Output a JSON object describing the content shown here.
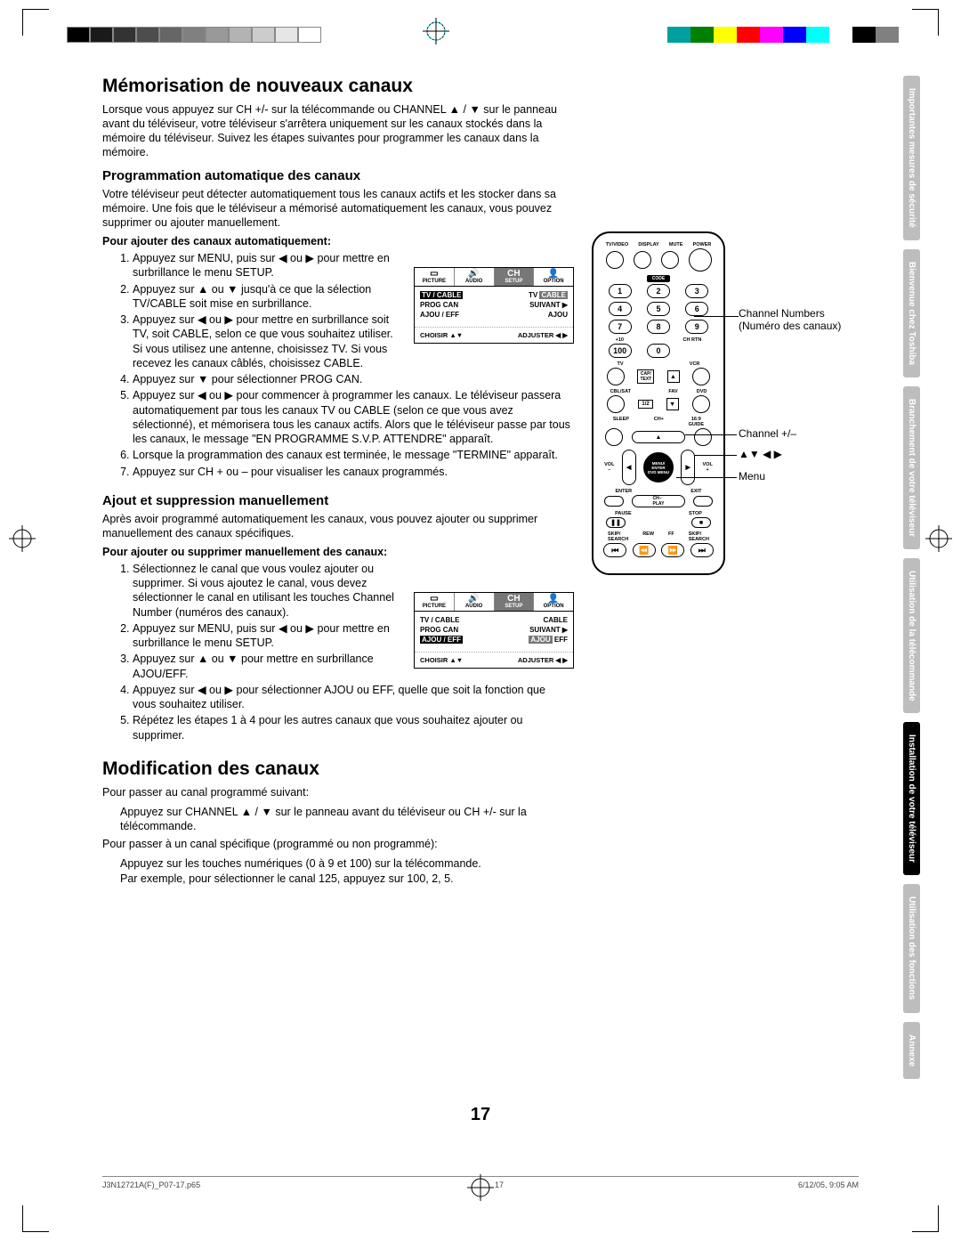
{
  "printer_marks": {
    "grayscale": [
      "#000000",
      "#1a1a1a",
      "#333333",
      "#4d4d4d",
      "#666666",
      "#808080",
      "#999999",
      "#b3b3b3",
      "#cccccc",
      "#e6e6e6",
      "#ffffff"
    ],
    "colorbar": [
      "#00a0a0",
      "#008000",
      "#ffff00",
      "#ff0000",
      "#ff00ff",
      "#0000ff",
      "#00ffff",
      "#ffffff",
      "#000000",
      "#808080"
    ]
  },
  "section1": {
    "title": "Mémorisation de nouveaux canaux",
    "intro": "Lorsque vous appuyez sur CH +/- sur la télécommande ou CHANNEL ▲ / ▼ sur le panneau avant du téléviseur, votre téléviseur s'arrêtera uniquement sur les canaux stockés dans la mémoire du téléviseur. Suivez les étapes suivantes pour programmer les canaux dans la mémoire.",
    "sub1": "Programmation automatique des canaux",
    "sub1_body": "Votre téléviseur peut détecter automatiquement tous les canaux actifs et les stocker dans sa mémoire. Une fois que le téléviseur a mémorisé automatiquement les canaux, vous pouvez supprimer ou ajouter manuellement.",
    "lead1": "Pour ajouter des canaux automatiquement:",
    "steps1": [
      "Appuyez sur MENU, puis sur ◀ ou ▶ pour mettre en surbrillance le menu SETUP.",
      "Appuyez sur ▲ ou ▼ jusqu'à ce que la sélection TV/CABLE soit mise en surbrillance.",
      "Appuyez sur ◀ ou ▶ pour mettre en surbrillance soit TV, soit CABLE, selon ce que vous souhaitez utiliser. Si vous utilisez une antenne, choisissez TV. Si vous recevez les canaux câblés, choisissez CABLE.",
      "Appuyez sur ▼ pour sélectionner PROG CAN.",
      "Appuyez sur ◀ ou ▶ pour commencer à programmer les canaux. Le téléviseur passera automatiquement par tous les canaux TV ou CABLE (selon ce que vous avez sélectionné), et mémorisera tous les canaux actifs. Alors que le téléviseur passe par tous les canaux, le message \"EN PROGRAMME S.V.P. ATTENDRE\" apparaît.",
      "Lorsque la programmation des canaux est terminée, le message \"TERMINE\" apparaît.",
      "Appuyez sur CH + ou – pour visualiser les canaux programmés."
    ],
    "sub2": "Ajout et suppression manuellement",
    "sub2_body": "Après avoir programmé automatiquement les canaux, vous pouvez ajouter ou supprimer manuellement des canaux spécifiques.",
    "lead2": "Pour ajouter ou supprimer manuellement des canaux:",
    "steps2": [
      "Sélectionnez le canal que vous voulez  ajouter ou supprimer. Si vous ajoutez le canal, vous devez sélectionner le canal en utilisant les touches Channel Number (numéros des canaux).",
      "Appuyez sur MENU, puis sur ◀ ou ▶ pour mettre en surbrillance le menu SETUP.",
      "Appuyez sur ▲ ou ▼ pour mettre en surbrillance AJOU/EFF.",
      "Appuyez sur ◀ ou ▶ pour sélectionner AJOU ou EFF, quelle que soit la fonction que vous souhaitez utiliser.",
      "Répétez les étapes 1 à 4 pour les autres canaux que vous souhaitez ajouter ou supprimer."
    ]
  },
  "section2": {
    "title": "Modification des canaux",
    "line1": "Pour passer au canal programmé suivant:",
    "line1b": "Appuyez sur CHANNEL ▲ / ▼ sur le panneau avant du téléviseur ou CH +/- sur la télécommande.",
    "line2": "Pour passer à un canal spécifique (programmé ou non programmé):",
    "line2b": "Appuyez sur les touches numériques (0 à 9 et 100) sur la télécommande.",
    "line2c": "Par exemple, pour sélectionner le canal 125, appuyez sur 100, 2, 5."
  },
  "osd1": {
    "tabs": [
      "PICTURE",
      "AUDIO",
      "SETUP",
      "OPTION"
    ],
    "sel": 2,
    "rows": [
      {
        "l": "TV / CABLE",
        "r": "TV",
        "hl": "l",
        "r2": "CABLE",
        "hlr": "r2"
      },
      {
        "l": "PROG CAN",
        "r": "SUIVANT ▶"
      },
      {
        "l": "AJOU / EFF",
        "r": "AJOU"
      }
    ],
    "foot_l": "CHOISIR  ▲▼",
    "foot_r": "ADJUSTER ◀ ▶"
  },
  "osd2": {
    "tabs": [
      "PICTURE",
      "AUDIO",
      "SETUP",
      "OPTION"
    ],
    "sel": 2,
    "rows": [
      {
        "l": "TV / CABLE",
        "r": "CABLE"
      },
      {
        "l": "PROG CAN",
        "r": "SUIVANT ▶"
      },
      {
        "l": "AJOU / EFF",
        "r": "AJOU EFF",
        "hl": "l",
        "hlr": "r_first"
      }
    ],
    "foot_l": "CHOISIR  ▲▼",
    "foot_r": "ADJUSTER ◀ ▶"
  },
  "remote": {
    "top_labels": [
      "TV/VIDEO",
      "DISPLAY",
      "MUTE",
      "POWER"
    ],
    "code": "CODE",
    "numbers": [
      "1",
      "2",
      "3",
      "4",
      "5",
      "6",
      "7",
      "8",
      "9",
      "100",
      "0"
    ],
    "sub_710": "+10",
    "sub_chrtn": "CH RTN",
    "row_tv_vcr": [
      "TV",
      "",
      "VCR"
    ],
    "cap": "CAP/\nTEXT",
    "row_cbl": [
      "CBL/SAT",
      "",
      "DVD"
    ],
    "half": "1/2",
    "fav": "FAV",
    "sleep": "SLEEP",
    "chp": "CH+",
    "ratio": "16:9\nGUIDE",
    "vol": "VOL",
    "menu": "MENU/\nENTER\nDVD MENU",
    "enter": "ENTER",
    "exit": "EXIT",
    "chm": "CH–\nPLAY",
    "pause": "PAUSE",
    "stop": "STOP",
    "skip": "SKIP/\nSEARCH",
    "rew": "REW",
    "ff": "FF"
  },
  "callouts": {
    "c1": "Channel Numbers (Numéro des canaux)",
    "c2": "Channel +/–",
    "c3": "▲▼ ◀ ▶",
    "c4": "Menu"
  },
  "sidebar_tabs": [
    "Importantes mesures de sécurité",
    "Bienvenue chez Toshiba",
    "Branchement de votre téléviseur",
    "Utilisation de la télécommande",
    "Installation de votre téléviseur",
    "Utilisation des fonctions",
    "Annexe"
  ],
  "page_number": "17",
  "footer": {
    "left": "J3N12721A(F)_P07-17.p65",
    "mid": "17",
    "right": "6/12/05, 9:05 AM"
  }
}
